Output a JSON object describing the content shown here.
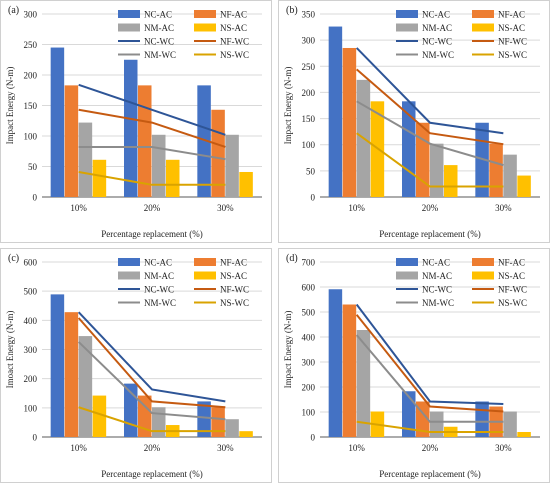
{
  "colors": {
    "NC-AC": "#4472C4",
    "NF-AC": "#ED7D31",
    "NM-AC": "#A5A5A5",
    "NS-AC": "#FFC000",
    "NC-WC": "#2E5597",
    "NF-WC": "#C55A11",
    "NM-WC": "#8C8C8C",
    "NS-WC": "#D9A300"
  },
  "chart_data": [
    {
      "type": "bar",
      "panel_label": "(a)",
      "categories": [
        "10%",
        "20%",
        "30%"
      ],
      "xlabel": "Percentage replacement (%)",
      "ylabel": "Impact Energy (N-m)",
      "ylim": [
        0,
        300
      ],
      "yticks": [
        0,
        50,
        100,
        150,
        200,
        250,
        300
      ],
      "series": [
        {
          "name": "NC-AC",
          "kind": "bar",
          "values": [
            245,
            225,
            183
          ]
        },
        {
          "name": "NF-AC",
          "kind": "bar",
          "values": [
            183,
            183,
            143
          ]
        },
        {
          "name": "NM-AC",
          "kind": "bar",
          "values": [
            122,
            102,
            102
          ]
        },
        {
          "name": "NS-AC",
          "kind": "bar",
          "values": [
            61,
            61,
            41
          ]
        },
        {
          "name": "NC-WC",
          "kind": "line",
          "values": [
            184,
            143,
            102
          ]
        },
        {
          "name": "NF-WC",
          "kind": "line",
          "values": [
            143,
            122,
            82
          ]
        },
        {
          "name": "NM-WC",
          "kind": "line",
          "values": [
            82,
            82,
            62
          ]
        },
        {
          "name": "NS-WC",
          "kind": "line",
          "values": [
            41,
            20,
            20
          ]
        }
      ]
    },
    {
      "type": "bar",
      "panel_label": "(b)",
      "categories": [
        "10%",
        "20%",
        "30%"
      ],
      "xlabel": "Percentage replacement (%)",
      "ylabel": "Impact Energy (N-m)",
      "ylim": [
        0,
        350
      ],
      "yticks": [
        0,
        50,
        100,
        150,
        200,
        250,
        300,
        350
      ],
      "series": [
        {
          "name": "NC-AC",
          "kind": "bar",
          "values": [
            326,
            183,
            142
          ]
        },
        {
          "name": "NF-AC",
          "kind": "bar",
          "values": [
            285,
            142,
            102
          ]
        },
        {
          "name": "NM-AC",
          "kind": "bar",
          "values": [
            224,
            102,
            81
          ]
        },
        {
          "name": "NS-AC",
          "kind": "bar",
          "values": [
            183,
            61,
            41
          ]
        },
        {
          "name": "NC-WC",
          "kind": "line",
          "values": [
            285,
            142,
            122
          ]
        },
        {
          "name": "NF-WC",
          "kind": "line",
          "values": [
            244,
            122,
            101
          ]
        },
        {
          "name": "NM-WC",
          "kind": "line",
          "values": [
            183,
            102,
            61
          ]
        },
        {
          "name": "NS-WC",
          "kind": "line",
          "values": [
            122,
            20,
            20
          ]
        }
      ]
    },
    {
      "type": "bar",
      "panel_label": "(c)",
      "categories": [
        "10%",
        "20%",
        "30%"
      ],
      "xlabel": "Percentage replacement (%)",
      "ylabel": "Imoact Energy (N-m)",
      "ylim": [
        0,
        600
      ],
      "yticks": [
        0,
        100,
        200,
        300,
        400,
        500,
        600
      ],
      "series": [
        {
          "name": "NC-AC",
          "kind": "bar",
          "values": [
            489,
            183,
            122
          ]
        },
        {
          "name": "NF-AC",
          "kind": "bar",
          "values": [
            428,
            142,
            102
          ]
        },
        {
          "name": "NM-AC",
          "kind": "bar",
          "values": [
            346,
            102,
            61
          ]
        },
        {
          "name": "NS-AC",
          "kind": "bar",
          "values": [
            142,
            41,
            20
          ]
        },
        {
          "name": "NC-WC",
          "kind": "line",
          "values": [
            428,
            163,
            122
          ]
        },
        {
          "name": "NF-WC",
          "kind": "line",
          "values": [
            408,
            122,
            102
          ]
        },
        {
          "name": "NM-WC",
          "kind": "line",
          "values": [
            326,
            82,
            61
          ]
        },
        {
          "name": "NS-WC",
          "kind": "line",
          "values": [
            102,
            20,
            20
          ]
        }
      ]
    },
    {
      "type": "bar",
      "panel_label": "(d)",
      "categories": [
        "10%",
        "20%",
        "30%"
      ],
      "xlabel": "Percentage replacement (%)",
      "ylabel": "Impact Energy (N-m)",
      "ylim": [
        0,
        700
      ],
      "yticks": [
        0,
        100,
        200,
        300,
        400,
        500,
        600,
        700
      ],
      "series": [
        {
          "name": "NC-AC",
          "kind": "bar",
          "values": [
            591,
            183,
            142
          ]
        },
        {
          "name": "NF-AC",
          "kind": "bar",
          "values": [
            530,
            142,
            122
          ]
        },
        {
          "name": "NM-AC",
          "kind": "bar",
          "values": [
            428,
            102,
            102
          ]
        },
        {
          "name": "NS-AC",
          "kind": "bar",
          "values": [
            102,
            41,
            20
          ]
        },
        {
          "name": "NC-WC",
          "kind": "line",
          "values": [
            530,
            142,
            132
          ]
        },
        {
          "name": "NF-WC",
          "kind": "line",
          "values": [
            489,
            122,
            102
          ]
        },
        {
          "name": "NM-WC",
          "kind": "line",
          "values": [
            408,
            61,
            61
          ]
        },
        {
          "name": "NS-WC",
          "kind": "line",
          "values": [
            61,
            20,
            20
          ]
        }
      ]
    }
  ]
}
